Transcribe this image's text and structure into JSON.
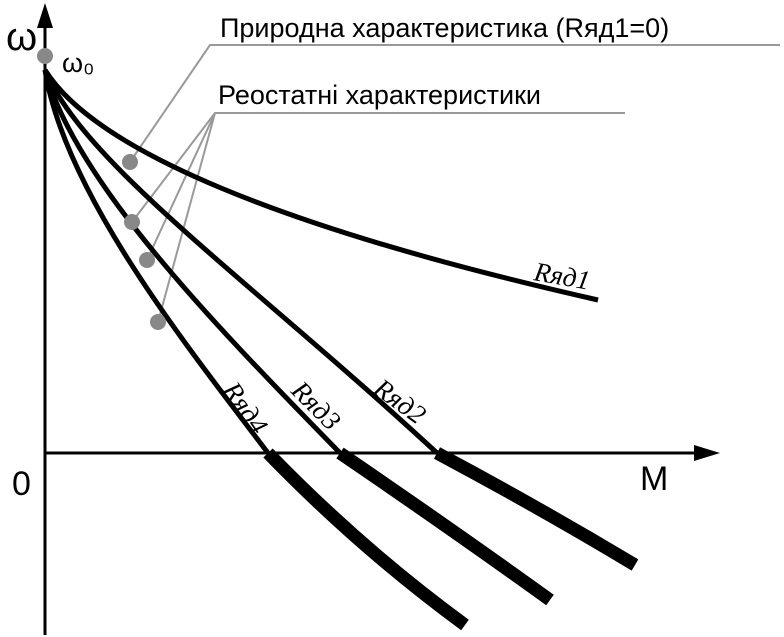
{
  "axes": {
    "y_label": "ω",
    "y_origin_label": "ω₀",
    "origin": "0",
    "x_label": "M"
  },
  "legend": {
    "natural": "Природна характеристика (Rяд1=0)",
    "rheostat": "Реостатні характеристики"
  },
  "curves": [
    {
      "label": "Rяд1"
    },
    {
      "label": "Rяд2"
    },
    {
      "label": "Rяд3"
    },
    {
      "label": "Rяд4"
    }
  ]
}
